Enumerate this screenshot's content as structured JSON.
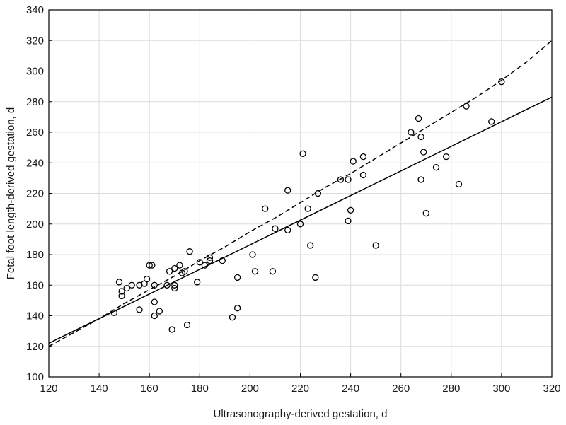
{
  "chart_data": {
    "type": "scatter",
    "xlabel": "Ultrasonography-derived gestation, d",
    "ylabel": "Fetal foot length-derived gestation, d",
    "xlim": [
      120,
      320
    ],
    "ylim": [
      100,
      340
    ],
    "x_ticks": [
      120,
      140,
      160,
      180,
      200,
      220,
      240,
      260,
      280,
      300,
      320
    ],
    "y_ticks": [
      100,
      120,
      140,
      160,
      180,
      200,
      220,
      240,
      260,
      280,
      300,
      320,
      340
    ],
    "grid": true,
    "marker": "open-circle",
    "points": [
      {
        "x": 146,
        "y": 142
      },
      {
        "x": 148,
        "y": 162
      },
      {
        "x": 149,
        "y": 156
      },
      {
        "x": 149,
        "y": 153
      },
      {
        "x": 151,
        "y": 158
      },
      {
        "x": 153,
        "y": 160
      },
      {
        "x": 156,
        "y": 160
      },
      {
        "x": 156,
        "y": 144
      },
      {
        "x": 158,
        "y": 161
      },
      {
        "x": 159,
        "y": 164
      },
      {
        "x": 160,
        "y": 173
      },
      {
        "x": 161,
        "y": 173
      },
      {
        "x": 162,
        "y": 160
      },
      {
        "x": 162,
        "y": 149
      },
      {
        "x": 162,
        "y": 140
      },
      {
        "x": 164,
        "y": 143
      },
      {
        "x": 167,
        "y": 160
      },
      {
        "x": 168,
        "y": 169
      },
      {
        "x": 169,
        "y": 131
      },
      {
        "x": 170,
        "y": 171
      },
      {
        "x": 170,
        "y": 160
      },
      {
        "x": 170,
        "y": 158
      },
      {
        "x": 172,
        "y": 173
      },
      {
        "x": 173,
        "y": 168
      },
      {
        "x": 174,
        "y": 169
      },
      {
        "x": 175,
        "y": 134
      },
      {
        "x": 176,
        "y": 182
      },
      {
        "x": 179,
        "y": 162
      },
      {
        "x": 180,
        "y": 175
      },
      {
        "x": 182,
        "y": 173
      },
      {
        "x": 184,
        "y": 178
      },
      {
        "x": 184,
        "y": 176
      },
      {
        "x": 189,
        "y": 176
      },
      {
        "x": 193,
        "y": 139
      },
      {
        "x": 195,
        "y": 145
      },
      {
        "x": 195,
        "y": 165
      },
      {
        "x": 201,
        "y": 180
      },
      {
        "x": 202,
        "y": 169
      },
      {
        "x": 206,
        "y": 210
      },
      {
        "x": 209,
        "y": 169
      },
      {
        "x": 210,
        "y": 197
      },
      {
        "x": 215,
        "y": 222
      },
      {
        "x": 215,
        "y": 196
      },
      {
        "x": 220,
        "y": 200
      },
      {
        "x": 221,
        "y": 246
      },
      {
        "x": 223,
        "y": 210
      },
      {
        "x": 224,
        "y": 186
      },
      {
        "x": 226,
        "y": 165
      },
      {
        "x": 227,
        "y": 220
      },
      {
        "x": 236,
        "y": 229
      },
      {
        "x": 239,
        "y": 229
      },
      {
        "x": 239,
        "y": 202
      },
      {
        "x": 240,
        "y": 209
      },
      {
        "x": 241,
        "y": 241
      },
      {
        "x": 245,
        "y": 244
      },
      {
        "x": 245,
        "y": 232
      },
      {
        "x": 250,
        "y": 186
      },
      {
        "x": 264,
        "y": 260
      },
      {
        "x": 267,
        "y": 269
      },
      {
        "x": 268,
        "y": 257
      },
      {
        "x": 268,
        "y": 229
      },
      {
        "x": 269,
        "y": 247
      },
      {
        "x": 270,
        "y": 207
      },
      {
        "x": 274,
        "y": 237
      },
      {
        "x": 278,
        "y": 244
      },
      {
        "x": 283,
        "y": 226
      },
      {
        "x": 286,
        "y": 277
      },
      {
        "x": 296,
        "y": 267
      },
      {
        "x": 300,
        "y": 293
      }
    ],
    "lines": [
      {
        "style": "solid",
        "x": [
          120,
          320
        ],
        "y": [
          122,
          283
        ]
      },
      {
        "style": "dashed",
        "x": [
          120,
          130,
          140,
          150,
          160,
          170,
          180,
          190,
          200,
          210,
          220,
          230,
          240,
          250,
          260,
          270,
          280,
          290,
          300,
          310,
          320
        ],
        "y": [
          120,
          129,
          138,
          148,
          157,
          166,
          176,
          185,
          195,
          204,
          214,
          224,
          233,
          243,
          253,
          263,
          273,
          283,
          294,
          306,
          320
        ]
      }
    ]
  }
}
